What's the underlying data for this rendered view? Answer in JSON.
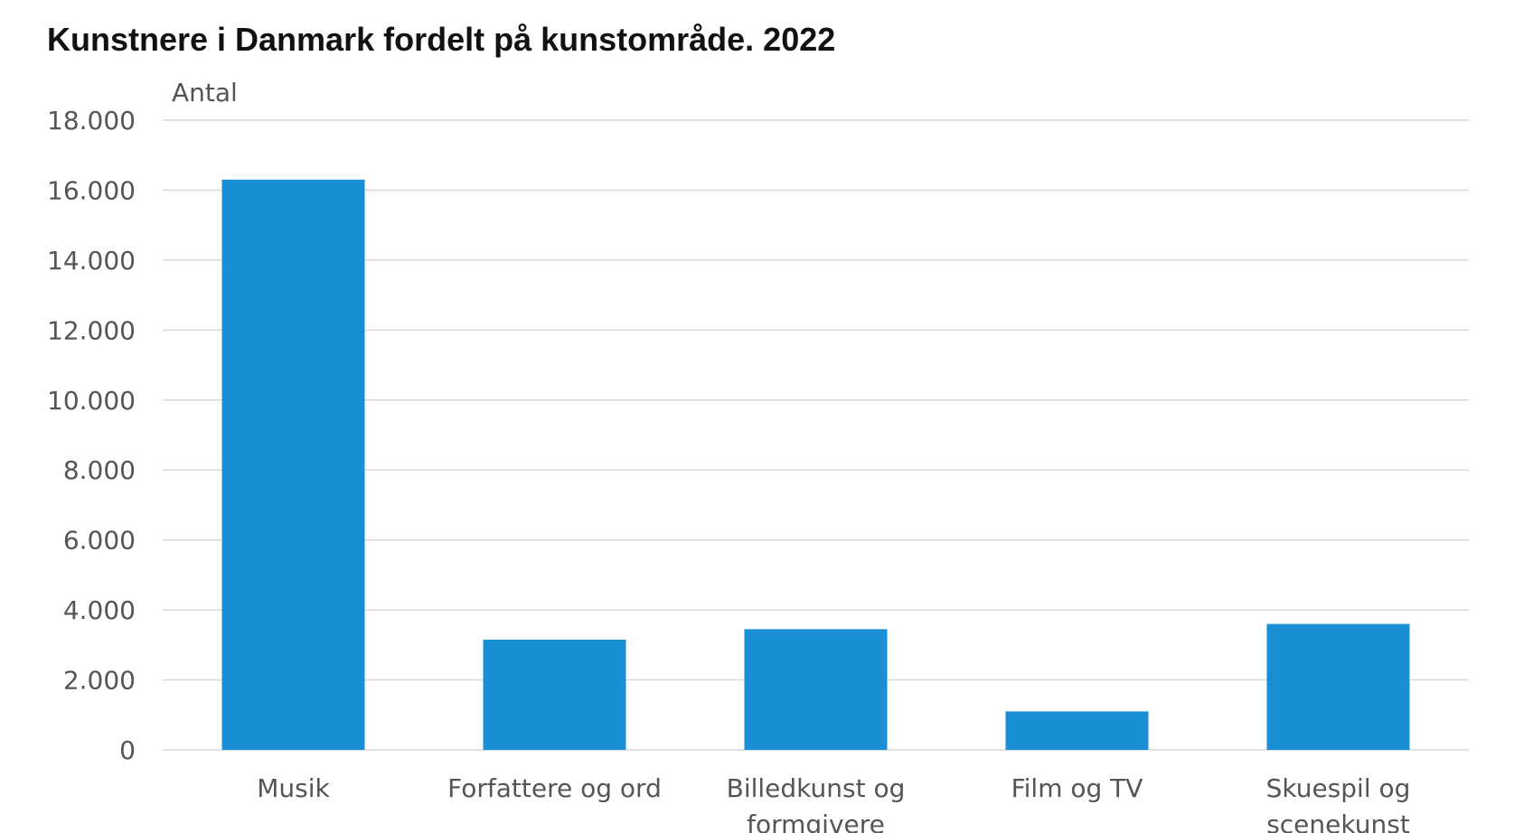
{
  "chart_data": {
    "type": "bar",
    "title": "Kunstnere i Danmark fordelt på kunstområde. 2022",
    "ylabel": "Antal",
    "xlabel": "",
    "ylim": [
      0,
      18000
    ],
    "yticks": [
      0,
      2000,
      4000,
      6000,
      8000,
      10000,
      12000,
      14000,
      16000,
      18000
    ],
    "ytick_labels": [
      "0",
      "2.000",
      "4.000",
      "6.000",
      "8.000",
      "10.000",
      "12.000",
      "14.000",
      "16.000",
      "18.000"
    ],
    "categories": [
      [
        "Musik"
      ],
      [
        "Forfattere og ord"
      ],
      [
        "Billedkunst og",
        "formgivere"
      ],
      [
        "Film og TV"
      ],
      [
        "Skuespil og",
        "scenekunst"
      ]
    ],
    "values": [
      16300,
      3150,
      3450,
      1100,
      3600
    ],
    "bar_color": "#1a8fd6",
    "grid_color": "#d9d9d9",
    "grid": true,
    "legend": "none"
  }
}
